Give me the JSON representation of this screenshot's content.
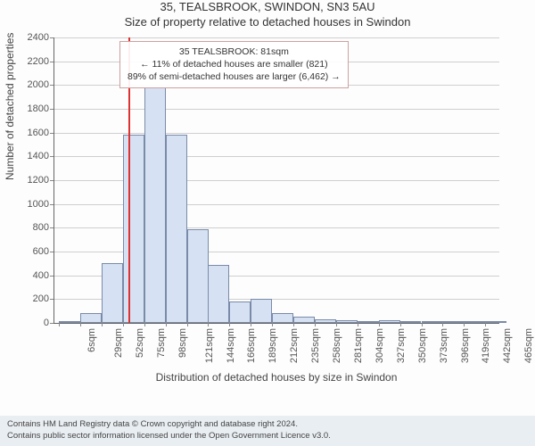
{
  "header": {
    "address": "35, TEALSBROOK, SWINDON, SN3 5AU",
    "subtitle": "Size of property relative to detached houses in Swindon"
  },
  "chart": {
    "type": "histogram",
    "ylabel": "Number of detached properties",
    "xlabel": "Distribution of detached houses by size in Swindon",
    "ylim": [
      0,
      2400
    ],
    "ytick_step": 200,
    "xlim": [
      0,
      480
    ],
    "xticks": [
      6,
      29,
      52,
      75,
      98,
      121,
      144,
      166,
      189,
      212,
      235,
      258,
      281,
      304,
      327,
      350,
      373,
      396,
      419,
      442,
      465
    ],
    "xtick_suffix": "sqm",
    "bin_width": 23,
    "bar_fill": "#d6e2f3",
    "bar_stroke": "#7a8aa8",
    "grid_color": "#cfcfcf",
    "background": "#fdfdfe",
    "label_fontsize": 12,
    "tick_fontsize": 11,
    "bins": [
      {
        "x": 6,
        "count": 2
      },
      {
        "x": 29,
        "count": 85
      },
      {
        "x": 52,
        "count": 500
      },
      {
        "x": 75,
        "count": 1580
      },
      {
        "x": 98,
        "count": 1980
      },
      {
        "x": 121,
        "count": 1580
      },
      {
        "x": 144,
        "count": 790
      },
      {
        "x": 166,
        "count": 490
      },
      {
        "x": 189,
        "count": 180
      },
      {
        "x": 212,
        "count": 200
      },
      {
        "x": 235,
        "count": 80
      },
      {
        "x": 258,
        "count": 55
      },
      {
        "x": 281,
        "count": 30
      },
      {
        "x": 304,
        "count": 20
      },
      {
        "x": 327,
        "count": 18
      },
      {
        "x": 350,
        "count": 20
      },
      {
        "x": 373,
        "count": 2
      },
      {
        "x": 396,
        "count": 2
      },
      {
        "x": 419,
        "count": 2
      },
      {
        "x": 442,
        "count": 2
      },
      {
        "x": 465,
        "count": 2
      }
    ],
    "reference_line": {
      "x": 81,
      "color": "#d33",
      "width": 2
    },
    "annotation": {
      "line1": "35 TEALSBROOK: 81sqm",
      "line2": "← 11% of detached houses are smaller (821)",
      "line3": "89% of semi-detached houses are larger (6,462) →",
      "border_color": "#cfa0a0",
      "bg_color": "rgba(255,255,255,0.92)"
    }
  },
  "footer": {
    "line1": "Contains HM Land Registry data © Crown copyright and database right 2024.",
    "line2": "Contains public sector information licensed under the Open Government Licence v3.0."
  }
}
